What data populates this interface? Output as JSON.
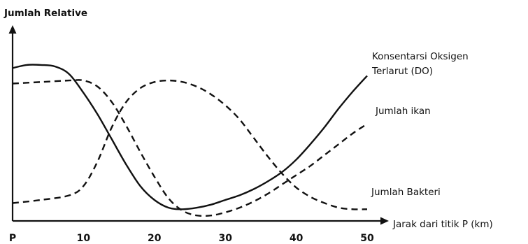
{
  "chart_data": {
    "type": "line",
    "ylabel": "Jumlah Relative",
    "xlabel": "Jarak dari  titik P (km)",
    "xlim": [
      0,
      50
    ],
    "ylim": [
      0,
      100
    ],
    "x_ticks": [
      {
        "value": 0,
        "label": "P"
      },
      {
        "value": 10,
        "label": "10"
      },
      {
        "value": 20,
        "label": "20"
      },
      {
        "value": 30,
        "label": "30"
      },
      {
        "value": 40,
        "label": "40"
      },
      {
        "value": 50,
        "label": "50"
      }
    ],
    "grid": false,
    "series": [
      {
        "name": "Konsentarsi Oksigen Terlarut (DO)",
        "label_lines": [
          "Konsentarsi Oksigen",
          "Terlarut (DO)"
        ],
        "style": "solid",
        "x": [
          0,
          2,
          4,
          6,
          8,
          10,
          12,
          14,
          16,
          18,
          20,
          22,
          24,
          26,
          28,
          30,
          32,
          34,
          36,
          38,
          40,
          42,
          44,
          46,
          48,
          50
        ],
        "y": [
          94,
          96,
          96,
          95,
          90,
          78,
          64,
          48,
          32,
          18,
          9,
          4,
          3,
          4,
          6,
          9,
          12,
          16,
          21,
          27,
          35,
          45,
          56,
          68,
          79,
          89
        ]
      },
      {
        "name": "Jumlah ikan",
        "label_lines": [
          "Jumlah ikan"
        ],
        "style": "dashed",
        "x": [
          0,
          4,
          8,
          10,
          12,
          14,
          16,
          18,
          20,
          22,
          24,
          26,
          28,
          30,
          32,
          34,
          36,
          38,
          40,
          42,
          44,
          46,
          48,
          50
        ],
        "y": [
          84,
          85,
          86,
          86,
          82,
          72,
          57,
          40,
          24,
          10,
          2,
          -1,
          -1,
          1,
          4,
          8,
          13,
          19,
          25,
          31,
          38,
          45,
          52,
          58
        ]
      },
      {
        "name": "Jumlah Bakteri",
        "label_lines": [
          "Jumlah Bakteri"
        ],
        "style": "dashed",
        "x": [
          0,
          4,
          8,
          10,
          12,
          14,
          16,
          18,
          20,
          22,
          24,
          26,
          28,
          30,
          32,
          34,
          36,
          38,
          40,
          42,
          44,
          46,
          48,
          50
        ],
        "y": [
          7,
          9,
          12,
          18,
          34,
          56,
          72,
          81,
          85,
          86,
          85,
          82,
          77,
          70,
          61,
          49,
          37,
          26,
          17,
          11,
          7,
          4,
          3,
          3
        ]
      }
    ]
  }
}
